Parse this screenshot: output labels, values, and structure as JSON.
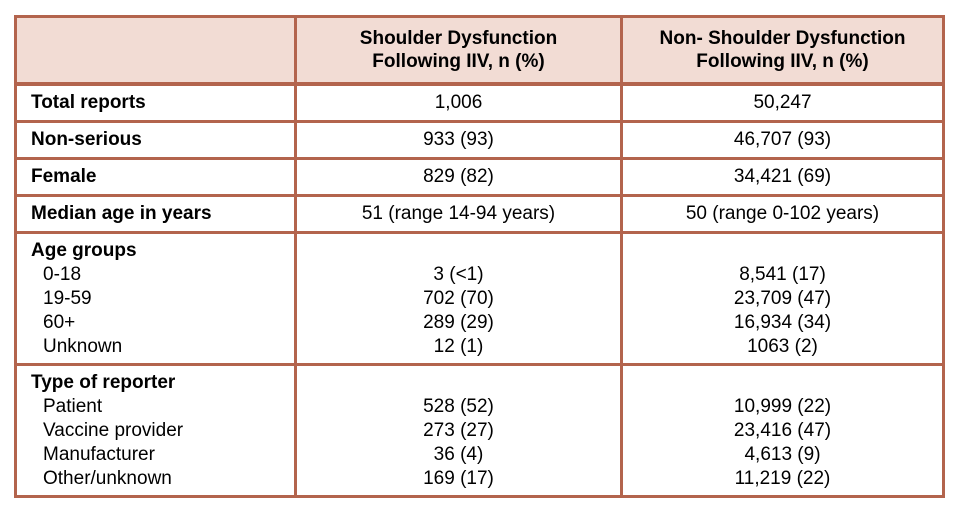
{
  "header": {
    "col1": "",
    "col2_line1": "Shoulder Dysfunction",
    "col2_line2": "Following IIV, n (%)",
    "col3_line1": "Non- Shoulder Dysfunction",
    "col3_line2": "Following IIV, n (%)"
  },
  "rows": [
    {
      "label": "Total reports",
      "sd": "1,006",
      "nsd": "50,247"
    },
    {
      "label": "Non-serious",
      "sd": "933 (93)",
      "nsd": "46,707 (93)"
    },
    {
      "label": "Female",
      "sd": "829 (82)",
      "nsd": "34,421 (69)"
    },
    {
      "label": "Median age in years",
      "sd": "51 (range 14-94 years)",
      "nsd": "50 (range 0-102 years)"
    }
  ],
  "age_groups": {
    "title": "Age groups",
    "items": [
      {
        "label": "0-18",
        "sd": "3 (<1)",
        "nsd": "8,541 (17)"
      },
      {
        "label": "19-59",
        "sd": "702 (70)",
        "nsd": "23,709 (47)"
      },
      {
        "label": "60+",
        "sd": "289 (29)",
        "nsd": "16,934 (34)"
      },
      {
        "label": "Unknown",
        "sd": "12 (1)",
        "nsd": "1063 (2)"
      }
    ]
  },
  "reporter_types": {
    "title": "Type of reporter",
    "items": [
      {
        "label": "Patient",
        "sd": "528 (52)",
        "nsd": "10,999 (22)"
      },
      {
        "label": "Vaccine provider",
        "sd": "273 (27)",
        "nsd": "23,416 (47)"
      },
      {
        "label": "Manufacturer",
        "sd": "36 (4)",
        "nsd": "4,613 (9)"
      },
      {
        "label": "Other/unknown",
        "sd": "169 (17)",
        "nsd": "11,219 (22)"
      }
    ]
  },
  "colors": {
    "border": "#b3644d",
    "header_bg": "#f2dcd4"
  }
}
